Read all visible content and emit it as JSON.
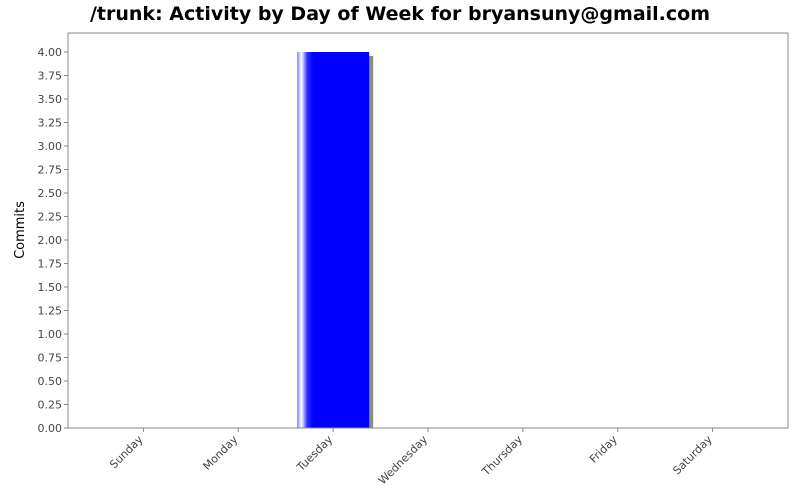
{
  "chart_data": {
    "type": "bar",
    "title": "/trunk: Activity by Day of Week for bryansuny@gmail.com",
    "xlabel": "",
    "ylabel": "Commits",
    "categories": [
      "Sunday",
      "Monday",
      "Tuesday",
      "Wednesday",
      "Thursday",
      "Friday",
      "Saturday"
    ],
    "values": [
      0,
      0,
      4,
      0,
      0,
      0,
      0
    ],
    "ylim": [
      0,
      4.0
    ],
    "ytick_step": 0.25,
    "ytick_labels": [
      "0.00",
      "0.25",
      "0.50",
      "0.75",
      "1.00",
      "1.25",
      "1.50",
      "1.75",
      "2.00",
      "2.25",
      "2.50",
      "2.75",
      "3.00",
      "3.25",
      "3.50",
      "3.75",
      "4.00"
    ],
    "grid": false,
    "legend": "none",
    "bar_color": "#0000ff",
    "plot_background": "#ffffff",
    "page_background": "#ffffff"
  }
}
